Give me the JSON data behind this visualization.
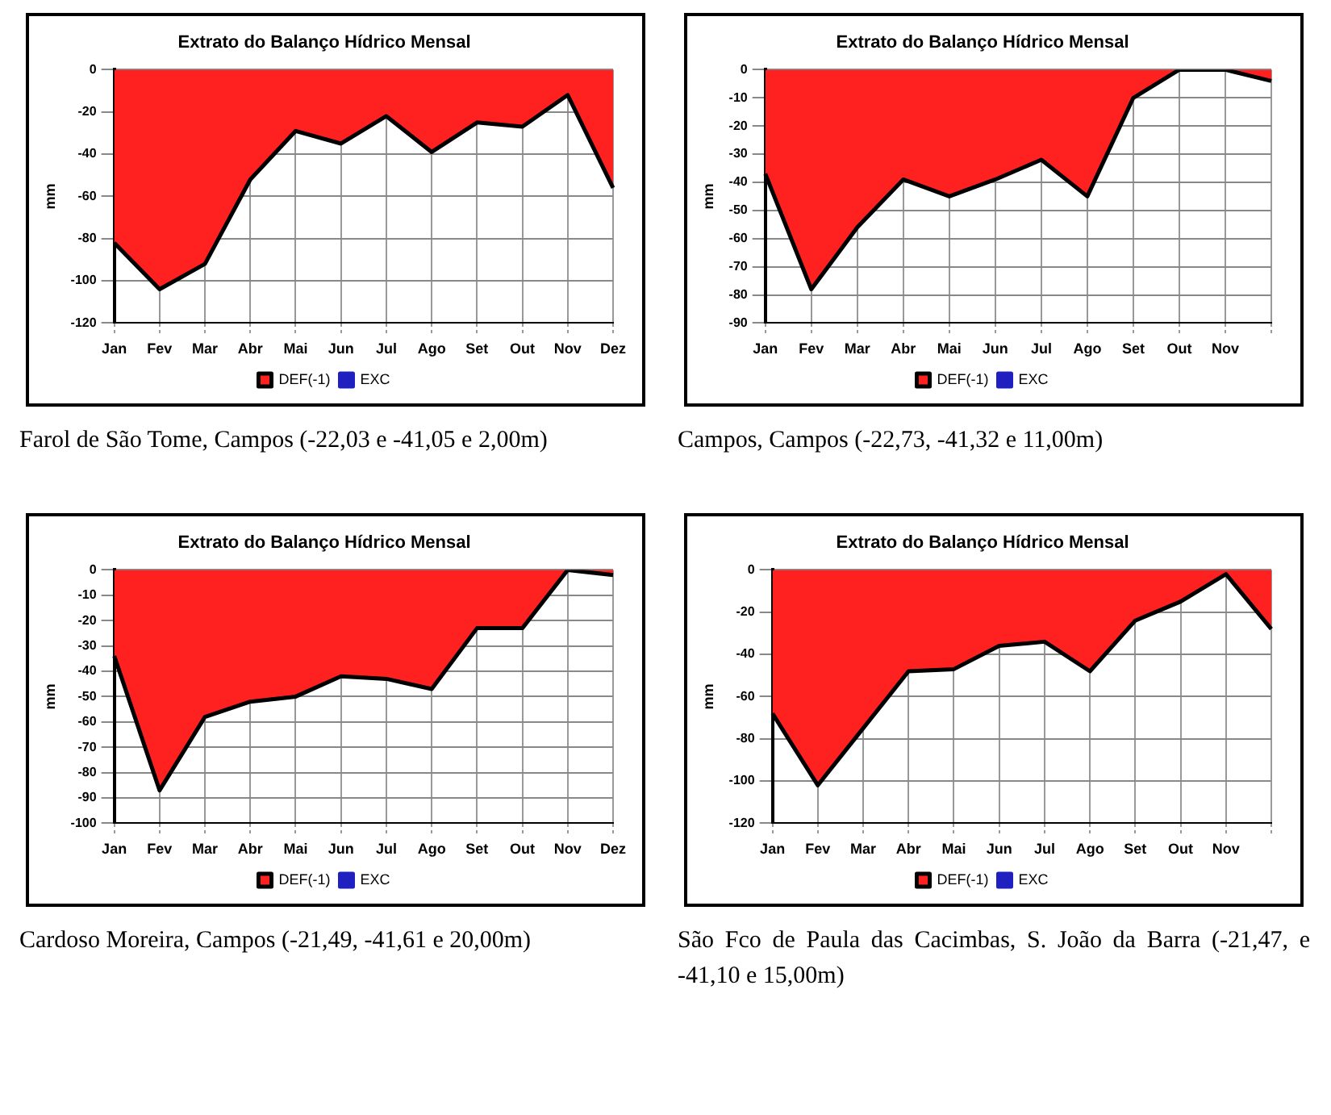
{
  "chart_data": [
    {
      "type": "area",
      "title": "Extrato do Balanço Hídrico Mensal",
      "ylabel": "mm",
      "categories": [
        "Jan",
        "Fev",
        "Mar",
        "Abr",
        "Mai",
        "Jun",
        "Jul",
        "Ago",
        "Set",
        "Out",
        "Nov",
        "Dez"
      ],
      "series": [
        {
          "name": "DEF(-1)",
          "color": "#ff2020",
          "values": [
            -82,
            -104,
            -92,
            -52,
            -29,
            -35,
            -22,
            -39,
            -25,
            -27,
            -12,
            -56
          ]
        },
        {
          "name": "EXC",
          "color": "#2020c0",
          "values": [
            null,
            null,
            null,
            null,
            null,
            null,
            null,
            null,
            null,
            null,
            null,
            null
          ]
        }
      ],
      "ylim": [
        -120,
        0
      ],
      "yticks": [
        -120,
        -100,
        -80,
        -60,
        -40,
        -20,
        0
      ],
      "grid": true,
      "legend": "bottom",
      "marker": "none",
      "annotations": [
        "Farol de São Tome, Campos (-22,03 e -41,05 e 2,00m)"
      ]
    },
    {
      "type": "area",
      "title": "Extrato do Balanço Hídrico Mensal",
      "ylabel": "mm",
      "categories": [
        "Jan",
        "Fev",
        "Mar",
        "Abr",
        "Mai",
        "Jun",
        "Jul",
        "Ago",
        "Set",
        "Out",
        "Nov",
        null
      ],
      "series": [
        {
          "name": "DEF(-1)",
          "color": "#ff2020",
          "values": [
            -37,
            -78,
            -56,
            -39,
            -45,
            -39,
            -32,
            -45,
            -10,
            0,
            0,
            -4
          ]
        },
        {
          "name": "EXC",
          "color": "#2020c0",
          "values": [
            null,
            null,
            null,
            null,
            null,
            null,
            null,
            null,
            null,
            null,
            null,
            null
          ]
        }
      ],
      "ylim": [
        -90,
        0
      ],
      "yticks": [
        -90,
        -80,
        -70,
        -60,
        -50,
        -40,
        -30,
        -20,
        -10,
        0
      ],
      "grid": true,
      "legend": "bottom",
      "marker": "none",
      "annotations": [
        "Campos, Campos (-22,73, -41,32 e 11,00m)"
      ]
    },
    {
      "type": "area",
      "title": "Extrato do Balanço Hídrico Mensal",
      "ylabel": "mm",
      "categories": [
        "Jan",
        "Fev",
        "Mar",
        "Abr",
        "Mai",
        "Jun",
        "Jul",
        "Ago",
        "Set",
        "Out",
        "Nov",
        "Dez"
      ],
      "series": [
        {
          "name": "DEF(-1)",
          "color": "#ff2020",
          "values": [
            -34,
            -87,
            -58,
            -52,
            -50,
            -42,
            -43,
            -47,
            -23,
            -23,
            0,
            -2
          ]
        },
        {
          "name": "EXC",
          "color": "#2020c0",
          "values": [
            null,
            null,
            null,
            null,
            null,
            null,
            null,
            null,
            null,
            null,
            null,
            null
          ]
        }
      ],
      "ylim": [
        -100,
        0
      ],
      "yticks": [
        -100,
        -90,
        -80,
        -70,
        -60,
        -50,
        -40,
        -30,
        -20,
        -10,
        0
      ],
      "grid": true,
      "legend": "bottom",
      "marker": "none",
      "annotations": [
        "Cardoso Moreira, Campos (-21,49, -41,61 e 20,00m)"
      ]
    },
    {
      "type": "area",
      "title": "Extrato do Balanço Hídrico Mensal",
      "ylabel": "mm",
      "categories": [
        "Jan",
        "Fev",
        "Mar",
        "Abr",
        "Mai",
        "Jun",
        "Jul",
        "Ago",
        "Set",
        "Out",
        "Nov",
        null
      ],
      "series": [
        {
          "name": "DEF(-1)",
          "color": "#ff2020",
          "values": [
            -68,
            -102,
            -75,
            -48,
            -47,
            -36,
            -34,
            -48,
            -24,
            -15,
            -2,
            -28
          ]
        },
        {
          "name": "EXC",
          "color": "#2020c0",
          "values": [
            null,
            null,
            null,
            null,
            null,
            null,
            null,
            null,
            null,
            null,
            null,
            null
          ]
        }
      ],
      "ylim": [
        -120,
        0
      ],
      "yticks": [
        -120,
        -100,
        -80,
        -60,
        -40,
        -20,
        0
      ],
      "grid": true,
      "legend": "bottom",
      "marker": "none",
      "annotations": [
        "São Fco de Paula das Cacimbas, S. João da Barra (-21,47, e -41,10 e 15,00m)"
      ]
    }
  ]
}
